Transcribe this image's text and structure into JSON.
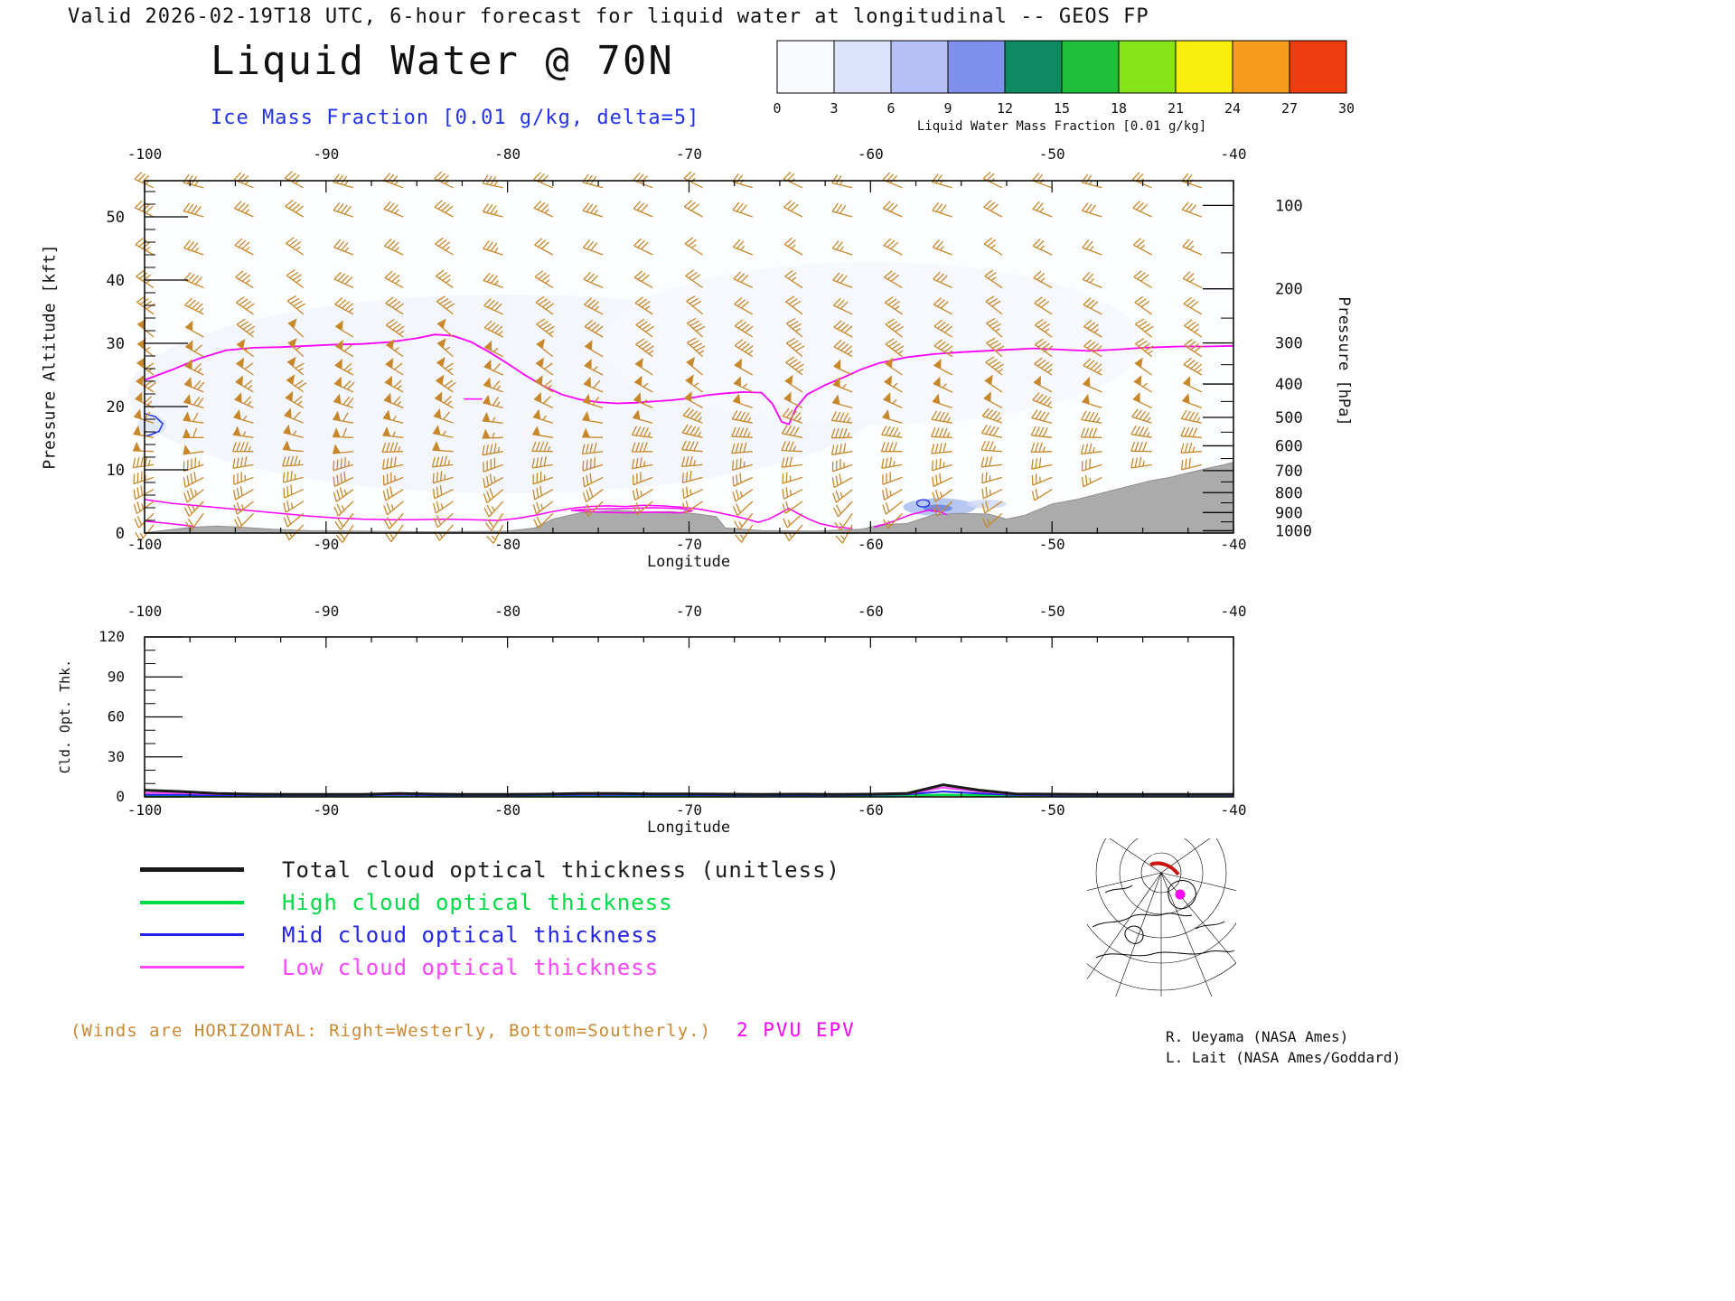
{
  "page": {
    "top_line": "Valid 2026-02-19T18 UTC, 6-hour forecast for liquid water at longitudinal -- GEOS FP",
    "title": "Liquid Water @ 70N",
    "subtitle": "Ice Mass Fraction [0.01 g/kg, delta=5]",
    "winds_note": "(Winds are HORIZONTAL: Right=Westerly, Bottom=Southerly.)",
    "epv_label": "2 PVU EPV",
    "credit1": "R. Ueyama (NASA Ames)",
    "credit2": "L. Lait (NASA Ames/Goddard)"
  },
  "colors": {
    "barb": "#c8882a",
    "epv": "#ff00ff",
    "ice": "#2233ee",
    "terrain": "#ababab",
    "terrain_edge": "#8f8f8f",
    "subtitle": "#2233ee",
    "winds_note": "#cc8833",
    "axis": "#000000"
  },
  "colorbar": {
    "title": "Liquid Water Mass Fraction [0.01 g/kg]",
    "ticks": [
      0,
      3,
      6,
      9,
      12,
      15,
      18,
      21,
      24,
      27,
      30
    ],
    "colors": [
      "#f9faff",
      "#dde3fb",
      "#b3bff5",
      "#7e90ea",
      "#0e8a62",
      "#1fbf3a",
      "#86e418",
      "#f6ef0e",
      "#f79c1d",
      "#ee3d0e"
    ]
  },
  "legend": {
    "items": [
      {
        "label": "Total cloud optical thickness (unitless)",
        "color": "#1a1a1a",
        "thickness": 5
      },
      {
        "label": "High cloud optical thickness",
        "color": "#00dd44",
        "thickness": 4
      },
      {
        "label": "Mid cloud optical thickness",
        "color": "#2222ee",
        "thickness": 3
      },
      {
        "label": "Low cloud optical thickness",
        "color": "#ff44ff",
        "thickness": 3
      }
    ]
  },
  "chart_data": [
    {
      "type": "section",
      "title": "Liquid Water @ 70N",
      "xlabel": "Longitude",
      "ylabel_left": "Pressure Altitude [kft]",
      "ylabel_right": "Pressure [hPa]",
      "xlim": [
        -100,
        -40
      ],
      "x_ticks": [
        -100,
        -90,
        -80,
        -70,
        -60,
        -50,
        -40
      ],
      "ylim_kft": [
        0,
        55.7
      ],
      "y_ticks_kft": [
        0,
        10,
        20,
        30,
        40,
        50
      ],
      "pressure_ticks_hpa": [
        100,
        200,
        300,
        400,
        500,
        600,
        700,
        800,
        900,
        1000
      ],
      "epv_contour_2pvu": [
        [
          -100,
          24.2
        ],
        [
          -98.5,
          25.8
        ],
        [
          -97,
          27.6
        ],
        [
          -95.5,
          28.9
        ],
        [
          -94,
          29.3
        ],
        [
          -92.5,
          29.4
        ],
        [
          -91,
          29.6
        ],
        [
          -89.5,
          29.8
        ],
        [
          -88,
          29.9
        ],
        [
          -86.5,
          30.2
        ],
        [
          -85,
          30.8
        ],
        [
          -84,
          31.4
        ],
        [
          -83,
          31.2
        ],
        [
          -82,
          30.2
        ],
        [
          -81,
          28.6
        ],
        [
          -80,
          26.8
        ],
        [
          -79,
          24.9
        ],
        [
          -78,
          23.2
        ],
        [
          -77,
          21.9
        ],
        [
          -76,
          21.1
        ],
        [
          -75,
          20.7
        ],
        [
          -74,
          20.5
        ],
        [
          -73,
          20.6
        ],
        [
          -72,
          20.8
        ],
        [
          -71,
          21.0
        ],
        [
          -70,
          21.3
        ],
        [
          -69,
          21.8
        ],
        [
          -68,
          22.1
        ],
        [
          -67,
          22.3
        ],
        [
          -66,
          22.2
        ],
        [
          -65.4,
          20.4
        ],
        [
          -64.9,
          17.6
        ],
        [
          -64.5,
          17.2
        ],
        [
          -64.1,
          19.8
        ],
        [
          -63.5,
          21.9
        ],
        [
          -62.5,
          23.4
        ],
        [
          -61.5,
          24.6
        ],
        [
          -60.5,
          25.9
        ],
        [
          -59.5,
          26.9
        ],
        [
          -58,
          27.8
        ],
        [
          -56.5,
          28.3
        ],
        [
          -55,
          28.6
        ],
        [
          -53,
          28.9
        ],
        [
          -51,
          29.2
        ],
        [
          -49.5,
          29.0
        ],
        [
          -48,
          28.8
        ],
        [
          -46.5,
          29.0
        ],
        [
          -45,
          29.3
        ],
        [
          -43,
          29.5
        ],
        [
          -41.5,
          29.5
        ],
        [
          -40,
          29.6
        ]
      ],
      "low_cloud_contours": [
        [
          [
            -100,
            5.3
          ],
          [
            -98.5,
            4.7
          ],
          [
            -97,
            4.3
          ],
          [
            -95.5,
            3.9
          ],
          [
            -94,
            3.5
          ],
          [
            -92.5,
            3.1
          ],
          [
            -91,
            2.7
          ],
          [
            -89.5,
            2.4
          ],
          [
            -88,
            2.2
          ],
          [
            -86.5,
            2.1
          ],
          [
            -85,
            2.1
          ],
          [
            -83.5,
            2.2
          ],
          [
            -82,
            2.1
          ],
          [
            -80.5,
            2.0
          ],
          [
            -79.5,
            2.3
          ],
          [
            -78.5,
            2.8
          ],
          [
            -77.5,
            3.4
          ],
          [
            -76.5,
            3.9
          ],
          [
            -75.5,
            4.2
          ],
          [
            -74.5,
            4.3
          ],
          [
            -73.5,
            4.2
          ],
          [
            -72.5,
            4.4
          ],
          [
            -71.5,
            4.3
          ],
          [
            -70.5,
            4.1
          ],
          [
            -69.5,
            3.8
          ],
          [
            -68.5,
            3.3
          ],
          [
            -67.5,
            2.7
          ],
          [
            -66.8,
            2.2
          ],
          [
            -66.2,
            1.7
          ],
          [
            -65.6,
            2.2
          ],
          [
            -65,
            3.1
          ],
          [
            -64.5,
            3.9
          ],
          [
            -64,
            3.1
          ],
          [
            -63.4,
            2.2
          ],
          [
            -62.8,
            1.5
          ],
          [
            -62,
            1.0
          ],
          [
            -61,
            0.7
          ]
        ],
        [
          [
            -100,
            1.9
          ],
          [
            -99,
            1.6
          ],
          [
            -98,
            1.3
          ],
          [
            -97.2,
            1.0
          ]
        ],
        [
          [
            -76.5,
            3.6
          ],
          [
            -75,
            3.3
          ],
          [
            -73.5,
            3.2
          ],
          [
            -72,
            3.3
          ],
          [
            -70.5,
            3.2
          ],
          [
            -69.8,
            3.5
          ],
          [
            -70.5,
            3.9
          ],
          [
            -72,
            4.0
          ],
          [
            -73.5,
            3.9
          ],
          [
            -75,
            3.8
          ],
          [
            -76.5,
            3.6
          ]
        ],
        [
          [
            -59.8,
            0.9
          ],
          [
            -58.8,
            1.8
          ],
          [
            -57.8,
            2.9
          ],
          [
            -56.8,
            3.6
          ],
          [
            -56.2,
            3.4
          ],
          [
            -55.8,
            2.9
          ]
        ],
        [
          [
            -82.4,
            21.2
          ],
          [
            -81.4,
            21.2
          ]
        ]
      ],
      "ice_contour_blue": [
        [
          -100,
          18.9
        ],
        [
          -99.4,
          18.4
        ],
        [
          -99,
          17.3
        ],
        [
          -99.2,
          16.1
        ],
        [
          -99.7,
          15.5
        ],
        [
          -100,
          15.3
        ]
      ],
      "terrain_kft": [
        [
          -100,
          0.05
        ],
        [
          -97.5,
          0.9
        ],
        [
          -96,
          1.1
        ],
        [
          -94.5,
          0.9
        ],
        [
          -93,
          0.6
        ],
        [
          -91,
          0.4
        ],
        [
          -88,
          0.3
        ],
        [
          -84,
          0.2
        ],
        [
          -80,
          0.3
        ],
        [
          -78.5,
          0.8
        ],
        [
          -77.5,
          2.2
        ],
        [
          -76,
          3.2
        ],
        [
          -74,
          3.6
        ],
        [
          -72.5,
          3.3
        ],
        [
          -71,
          3.4
        ],
        [
          -69.5,
          3.0
        ],
        [
          -68.5,
          2.6
        ],
        [
          -68,
          0.8
        ],
        [
          -66,
          0.4
        ],
        [
          -63,
          0.3
        ],
        [
          -60.5,
          0.6
        ],
        [
          -59.5,
          1.3
        ],
        [
          -58,
          1.5
        ],
        [
          -56.5,
          2.9
        ],
        [
          -55,
          3.1
        ],
        [
          -53.5,
          3.0
        ],
        [
          -52.5,
          2.2
        ],
        [
          -51.5,
          2.8
        ],
        [
          -50,
          4.6
        ],
        [
          -48.5,
          5.4
        ],
        [
          -47,
          6.5
        ],
        [
          -45.5,
          7.6
        ],
        [
          -44.5,
          8.3
        ],
        [
          -43.5,
          8.8
        ],
        [
          -42.5,
          9.5
        ],
        [
          -41.5,
          10.2
        ],
        [
          -40.5,
          10.8
        ],
        [
          -40,
          11.2
        ]
      ],
      "liquid_water_shading": [
        {
          "lon": -56.2,
          "alt": 4.1,
          "rlon": 2.0,
          "ralt": 1.4,
          "color": "#a9bdf0",
          "opacity": 0.85
        },
        {
          "lon": -56.3,
          "alt": 3.9,
          "rlon": 0.8,
          "ralt": 0.6,
          "color": "#6e86de",
          "opacity": 0.9
        },
        {
          "lon": -53.6,
          "alt": 4.6,
          "rlon": 1.1,
          "ralt": 0.7,
          "color": "#cdd8f5",
          "opacity": 0.8
        },
        {
          "lon": -99.6,
          "alt": 17.0,
          "rlon": 0.8,
          "ralt": 1.6,
          "color": "#dbe3f8",
          "opacity": 0.8
        }
      ],
      "wind_barbs": {
        "columns": [
          -99.5,
          -96.75,
          -94,
          -91.25,
          -88.5,
          -85.75,
          -83,
          -80.25,
          -77.5,
          -74.75,
          -72,
          -69.25,
          -66.5,
          -63.75,
          -61,
          -58.25,
          -55.5,
          -52.75,
          -50,
          -47.25,
          -44.5,
          -41.75
        ],
        "dir_offsets": [
          4,
          -6,
          2,
          8,
          -4,
          0,
          6,
          -8,
          3,
          -5,
          1,
          7,
          -3,
          5,
          -7,
          2,
          -4,
          6,
          0,
          -5,
          3,
          -2
        ],
        "spd_factors": [
          1.15,
          1.2,
          1.1,
          1.15,
          1.2,
          1.1,
          1.15,
          1.1,
          1.05,
          1.0,
          0.95,
          0.9,
          0.9,
          0.85,
          0.9,
          0.95,
          0.9,
          0.85,
          0.8,
          0.85,
          0.9,
          0.85
        ],
        "levels": [
          [
            1.3,
            215,
            15
          ],
          [
            3.1,
            222,
            18
          ],
          [
            5,
            230,
            22
          ],
          [
            6.9,
            238,
            28
          ],
          [
            8.8,
            248,
            32
          ],
          [
            10.8,
            258,
            38
          ],
          [
            12.9,
            268,
            42
          ],
          [
            15.1,
            276,
            48
          ],
          [
            17.4,
            284,
            52
          ],
          [
            19.8,
            292,
            58
          ],
          [
            22.3,
            298,
            60
          ],
          [
            25,
            302,
            55
          ],
          [
            27.9,
            305,
            48
          ],
          [
            31,
            305,
            42
          ],
          [
            34.6,
            302,
            36
          ],
          [
            38.8,
            298,
            32
          ],
          [
            44,
            295,
            30
          ],
          [
            50,
            292,
            34
          ],
          [
            54.6,
            290,
            30
          ]
        ]
      }
    },
    {
      "type": "line",
      "xlabel": "Longitude",
      "ylabel": "Cld. Opt. Thk.",
      "xlim": [
        -100,
        -40
      ],
      "ylim": [
        0,
        120
      ],
      "x_ticks": [
        -100,
        -90,
        -80,
        -70,
        -60,
        -50,
        -40
      ],
      "y_ticks": [
        0,
        30,
        60,
        90,
        120
      ],
      "x": [
        -100,
        -98,
        -96,
        -94,
        -92,
        -90,
        -88,
        -86,
        -84,
        -82,
        -80,
        -78,
        -76,
        -74,
        -72,
        -70,
        -68,
        -66,
        -64,
        -62,
        -60,
        -58,
        -56,
        -54,
        -52,
        -50,
        -48,
        -46,
        -44,
        -42,
        -40
      ],
      "series": [
        {
          "name": "Total cloud optical thickness (unitless)",
          "color": "#1a1a1a",
          "width": 3,
          "y": [
            5,
            4,
            2.5,
            2,
            1.8,
            1.8,
            1.8,
            2.5,
            2,
            1.8,
            1.8,
            2,
            2.5,
            2.5,
            2.2,
            2.2,
            2,
            1.8,
            2,
            1.8,
            2,
            2.5,
            9,
            5,
            2.2,
            2,
            1.8,
            1.8,
            1.8,
            1.8,
            1.8
          ]
        },
        {
          "name": "High cloud optical thickness",
          "color": "#00dd44",
          "width": 2.5,
          "y": [
            1,
            1,
            1,
            1,
            1,
            1,
            1,
            1,
            1,
            1,
            1,
            1,
            1,
            1,
            1,
            1,
            1,
            1,
            1,
            1,
            1,
            1,
            1.5,
            1.2,
            1,
            1,
            1,
            1,
            1,
            1,
            1
          ]
        },
        {
          "name": "Mid cloud optical thickness",
          "color": "#2222ee",
          "width": 2,
          "y": [
            1.5,
            1.5,
            1.3,
            1.3,
            1.3,
            1.3,
            1.3,
            1.5,
            1.3,
            1.3,
            1.3,
            1.4,
            1.5,
            1.5,
            1.4,
            1.4,
            1.3,
            1.3,
            1.3,
            1.3,
            1.4,
            1.8,
            4,
            2.5,
            1.4,
            1.3,
            1.3,
            1.3,
            1.3,
            1.3,
            1.3
          ]
        },
        {
          "name": "Low cloud optical thickness",
          "color": "#ff44ff",
          "width": 2,
          "y": [
            3,
            2.8,
            2,
            1.8,
            1.6,
            1.6,
            1.6,
            2,
            1.8,
            1.6,
            1.6,
            1.8,
            2.2,
            2.2,
            2,
            2,
            1.8,
            1.6,
            1.8,
            1.6,
            1.8,
            2.2,
            7,
            4,
            1.8,
            1.6,
            1.5,
            1.5,
            1.5,
            1.5,
            1.5
          ]
        }
      ]
    }
  ]
}
